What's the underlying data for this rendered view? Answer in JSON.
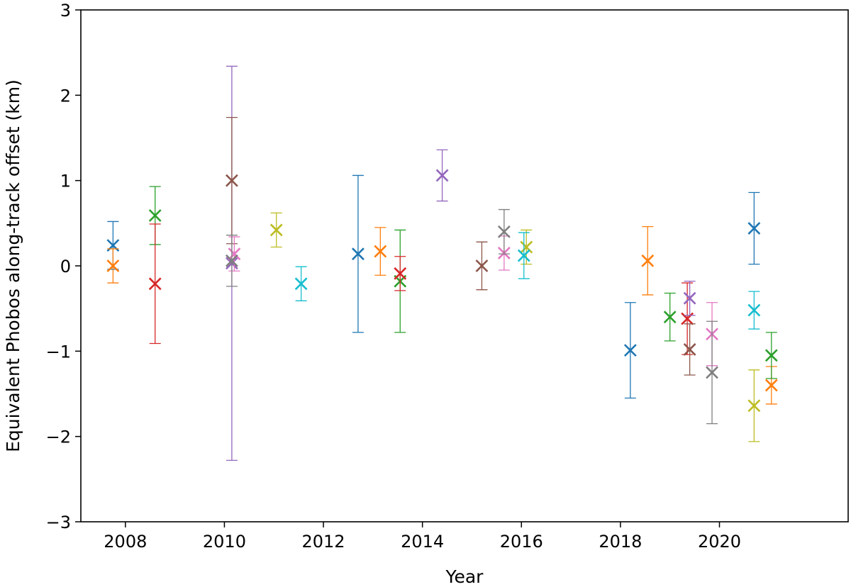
{
  "chart_data": {
    "type": "scatter",
    "title": "",
    "xlabel": "Year",
    "ylabel": "Equivalent Phobos along-track offset (km)",
    "xlim": [
      2007.1,
      2022.6
    ],
    "ylim": [
      -3,
      3
    ],
    "xticks": [
      2008,
      2010,
      2012,
      2014,
      2016,
      2018,
      2020
    ],
    "xtick_labels": [
      "2008",
      "2010",
      "2012",
      "2014",
      "2016",
      "2018",
      "2020"
    ],
    "yticks": [
      -3,
      -2,
      -1,
      0,
      1,
      2,
      3
    ],
    "ytick_labels": [
      "−3",
      "−2",
      "−1",
      "0",
      "1",
      "2",
      "3"
    ],
    "grid": false,
    "marker": "x",
    "points": [
      {
        "x": 2007.75,
        "y": 0.24,
        "err": 0.28,
        "color": "#1f77b4"
      },
      {
        "x": 2007.75,
        "y": 0.0,
        "err": 0.2,
        "color": "#ff7f0e"
      },
      {
        "x": 2008.6,
        "y": 0.59,
        "err": 0.34,
        "color": "#2ca02c"
      },
      {
        "x": 2008.6,
        "y": -0.21,
        "err": 0.7,
        "color": "#d62728"
      },
      {
        "x": 2010.15,
        "y": 0.03,
        "err": 2.31,
        "color": "#9467bd"
      },
      {
        "x": 2010.15,
        "y": 1.0,
        "err": 0.74,
        "color": "#8c564b"
      },
      {
        "x": 2010.2,
        "y": 0.14,
        "err": 0.2,
        "color": "#e377c2"
      },
      {
        "x": 2010.15,
        "y": 0.06,
        "err": 0.3,
        "color": "#7f7f7f"
      },
      {
        "x": 2011.05,
        "y": 0.42,
        "err": 0.2,
        "color": "#bcbd22"
      },
      {
        "x": 2011.55,
        "y": -0.21,
        "err": 0.2,
        "color": "#17becf"
      },
      {
        "x": 2012.7,
        "y": 0.14,
        "err": 0.92,
        "color": "#1f77b4"
      },
      {
        "x": 2013.15,
        "y": 0.17,
        "err": 0.28,
        "color": "#ff7f0e"
      },
      {
        "x": 2013.55,
        "y": -0.18,
        "err": 0.6,
        "color": "#2ca02c"
      },
      {
        "x": 2013.55,
        "y": -0.09,
        "err": 0.2,
        "color": "#d62728"
      },
      {
        "x": 2014.4,
        "y": 1.06,
        "err": 0.3,
        "color": "#9467bd"
      },
      {
        "x": 2015.2,
        "y": 0.0,
        "err": 0.28,
        "color": "#8c564b"
      },
      {
        "x": 2015.65,
        "y": 0.15,
        "err": 0.2,
        "color": "#e377c2"
      },
      {
        "x": 2015.65,
        "y": 0.4,
        "err": 0.26,
        "color": "#7f7f7f"
      },
      {
        "x": 2016.1,
        "y": 0.22,
        "err": 0.2,
        "color": "#bcbd22"
      },
      {
        "x": 2016.05,
        "y": 0.12,
        "err": 0.27,
        "color": "#17becf"
      },
      {
        "x": 2018.2,
        "y": -0.99,
        "err": 0.56,
        "color": "#1f77b4"
      },
      {
        "x": 2018.55,
        "y": 0.06,
        "err": 0.4,
        "color": "#ff7f0e"
      },
      {
        "x": 2019.0,
        "y": -0.6,
        "err": 0.28,
        "color": "#2ca02c"
      },
      {
        "x": 2019.35,
        "y": -0.62,
        "err": 0.42,
        "color": "#d62728"
      },
      {
        "x": 2019.4,
        "y": -0.38,
        "err": 0.2,
        "color": "#9467bd"
      },
      {
        "x": 2019.4,
        "y": -0.98,
        "err": 0.3,
        "color": "#8c564b"
      },
      {
        "x": 2019.85,
        "y": -0.8,
        "err": 0.37,
        "color": "#e377c2"
      },
      {
        "x": 2019.85,
        "y": -1.25,
        "err": 0.6,
        "color": "#7f7f7f"
      },
      {
        "x": 2020.7,
        "y": -1.64,
        "err": 0.42,
        "color": "#bcbd22"
      },
      {
        "x": 2020.7,
        "y": -0.52,
        "err": 0.22,
        "color": "#17becf"
      },
      {
        "x": 2020.7,
        "y": 0.44,
        "err": 0.42,
        "color": "#1f77b4"
      },
      {
        "x": 2021.05,
        "y": -1.4,
        "err": 0.22,
        "color": "#ff7f0e"
      },
      {
        "x": 2021.05,
        "y": -1.05,
        "err": 0.27,
        "color": "#2ca02c"
      }
    ]
  }
}
